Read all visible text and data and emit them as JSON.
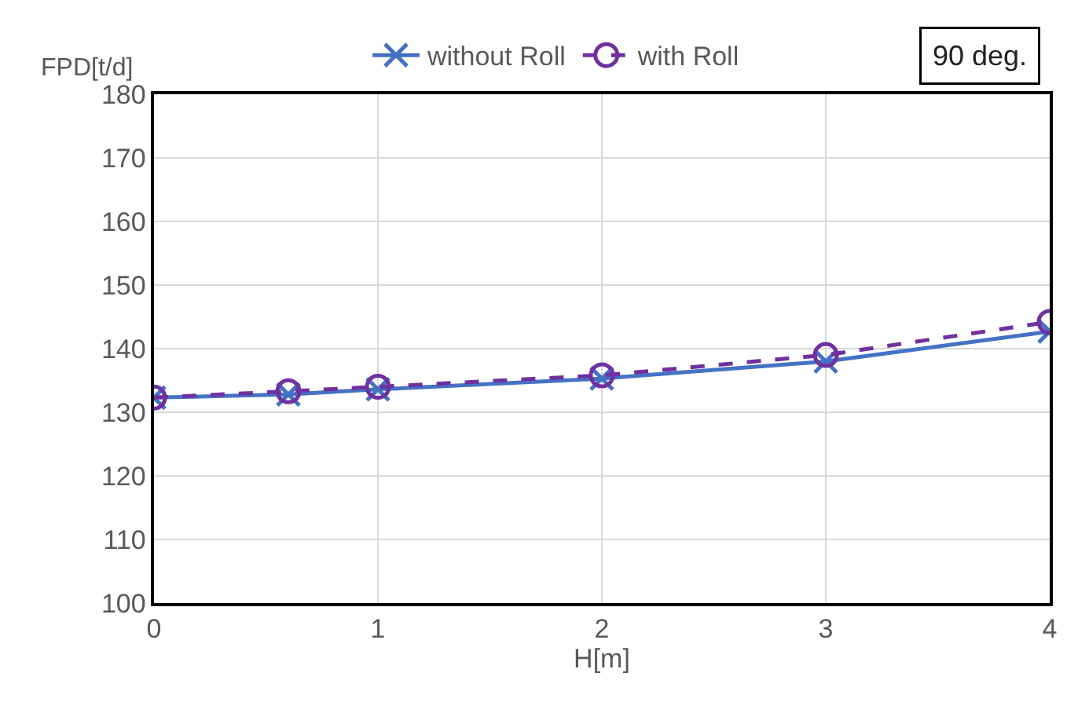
{
  "chart_data": {
    "type": "line",
    "ylabel": "FPD[t/d]",
    "xlabel": "H[m]",
    "x": [
      0,
      0.6,
      1,
      2,
      3,
      4
    ],
    "series": [
      {
        "name": "without Roll",
        "color": "#4472c4",
        "values": [
          132.3,
          132.8,
          133.6,
          135.3,
          138.0,
          142.7
        ],
        "marker": "cross",
        "line_style": "solid"
      },
      {
        "name": "with Roll",
        "color": "#7030a0",
        "values": [
          132.3,
          133.3,
          134.0,
          135.8,
          139.0,
          144.2
        ],
        "marker": "circle",
        "line_style": "dashed"
      }
    ],
    "xlim": [
      0,
      4
    ],
    "xticks": [
      0,
      1,
      2,
      3,
      4
    ],
    "ylim": [
      100,
      180
    ],
    "yticks": [
      100,
      110,
      120,
      130,
      140,
      150,
      160,
      170,
      180
    ],
    "grid": true,
    "legend": "top",
    "annotations": [
      "90 deg."
    ]
  }
}
